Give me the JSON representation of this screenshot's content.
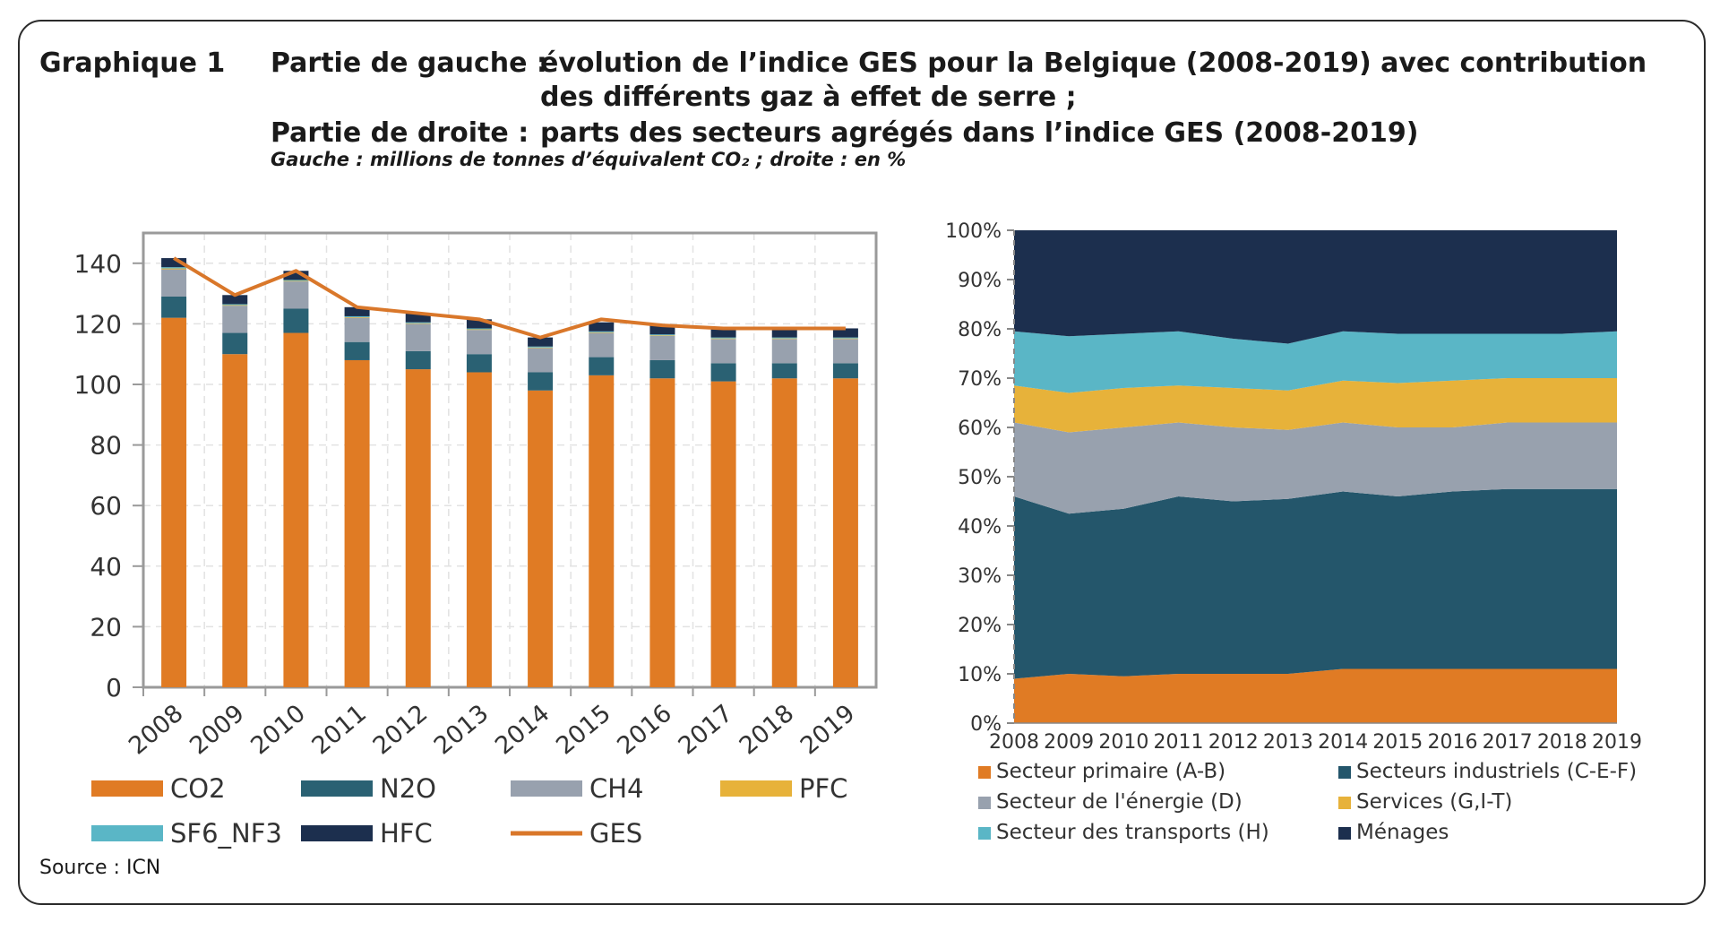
{
  "header": {
    "graph_label": "Graphique 1",
    "left_label": "Partie de gauche :",
    "left_text_line1": "évolution de l’indice GES pour la Belgique (2008-2019) avec contribution",
    "left_text_line2": "des différents gaz à effet de serre ;",
    "right_label": "Partie de droite :",
    "right_text": "parts des secteurs agrégés dans l’indice GES (2008-2019)",
    "units": "Gauche : millions de tonnes d’équivalent CO₂ ; droite : en %"
  },
  "source": "Source : ICN",
  "chart_data": [
    {
      "type": "bar",
      "stacked": true,
      "categories": [
        "2008",
        "2009",
        "2010",
        "2011",
        "2012",
        "2013",
        "2014",
        "2015",
        "2016",
        "2017",
        "2018",
        "2019"
      ],
      "ylim": [
        0,
        150
      ],
      "yticks": [
        "0",
        "20",
        "40",
        "60",
        "80",
        "100",
        "120",
        "140"
      ],
      "grid": true,
      "legend_position": "bottom",
      "series": [
        {
          "name": "CO2",
          "color": "#e07b24",
          "values": [
            122,
            110,
            117,
            108,
            105,
            104,
            98,
            103,
            102,
            101,
            102,
            102
          ]
        },
        {
          "name": "N2O",
          "color": "#2a6173",
          "values": [
            7,
            7,
            8,
            6,
            6,
            6,
            6,
            6,
            6,
            6,
            5,
            5
          ]
        },
        {
          "name": "CH4",
          "color": "#98a1ae",
          "values": [
            9,
            9,
            9,
            8,
            9,
            8,
            8,
            8,
            8,
            8,
            8,
            8
          ]
        },
        {
          "name": "PFC",
          "color": "#e7b23a",
          "values": [
            0.3,
            0.2,
            0.2,
            0.2,
            0.2,
            0.2,
            0.2,
            0.2,
            0.2,
            0.2,
            0.2,
            0.2
          ]
        },
        {
          "name": "SF6_NF3",
          "color": "#5ab6c6",
          "values": [
            0.4,
            0.3,
            0.3,
            0.3,
            0.3,
            0.3,
            0.3,
            0.3,
            0.3,
            0.3,
            0.3,
            0.3
          ]
        },
        {
          "name": "HFC",
          "color": "#1c2f4e",
          "values": [
            3,
            3,
            3,
            3,
            3,
            3,
            3,
            3,
            3,
            3,
            3,
            3
          ]
        }
      ],
      "line_series": {
        "name": "GES",
        "color": "#d9772a",
        "values": [
          141.7,
          129.5,
          137.5,
          125.5,
          123.5,
          121.5,
          115.5,
          121.5,
          119.5,
          118.5,
          118.5,
          118.5
        ]
      }
    },
    {
      "type": "area",
      "stacked": true,
      "x": [
        "2008",
        "2009",
        "2010",
        "2011",
        "2012",
        "2013",
        "2014",
        "2015",
        "2016",
        "2017",
        "2018",
        "2019"
      ],
      "ylim": [
        0,
        100
      ],
      "yticks": [
        "0%",
        "10%",
        "20%",
        "30%",
        "40%",
        "50%",
        "60%",
        "70%",
        "80%",
        "90%",
        "100%"
      ],
      "legend_position": "bottom",
      "series": [
        {
          "name": "Secteur primaire (A-B)",
          "color": "#e07b24",
          "values": [
            9,
            10,
            9.5,
            10,
            10,
            10,
            11,
            11,
            11,
            11,
            11,
            11
          ]
        },
        {
          "name": "Secteurs industriels (C-E-F)",
          "color": "#24566b",
          "values": [
            37,
            32.5,
            34,
            36,
            35,
            35.5,
            36,
            35,
            36,
            36.5,
            36.5,
            36.5
          ]
        },
        {
          "name": "Secteur de l'énergie (D)",
          "color": "#98a1ae",
          "values": [
            15,
            16.5,
            16.5,
            15,
            15,
            14,
            14,
            14,
            13,
            13.5,
            13.5,
            13.5
          ]
        },
        {
          "name": "Services (G,I-T)",
          "color": "#e7b23a",
          "values": [
            7.5,
            8,
            8,
            7.5,
            8,
            8,
            8.5,
            9,
            9.5,
            9,
            9,
            9
          ]
        },
        {
          "name": "Secteur des transports (H)",
          "color": "#5ab6c6",
          "values": [
            11,
            11.5,
            11,
            11,
            10,
            9.5,
            10,
            10,
            9.5,
            9,
            9,
            9.5
          ]
        },
        {
          "name": "Ménages",
          "color": "#1c2f4e",
          "values": [
            20.5,
            21.5,
            21,
            20.5,
            22,
            23,
            20.5,
            21,
            21,
            21,
            21,
            20.5
          ]
        }
      ]
    }
  ]
}
